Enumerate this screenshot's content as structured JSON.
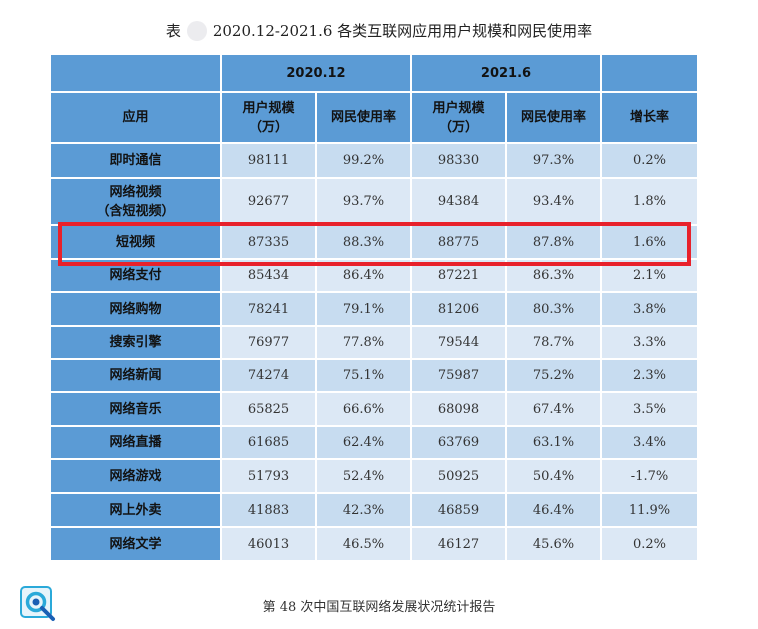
{
  "caption": {
    "prefix": "表",
    "text": "2020.12-2021.6 各类互联网应用用户规模和网民使用率"
  },
  "table": {
    "period_headers": [
      "2020.12",
      "2021.6"
    ],
    "col_headers": {
      "app": "应用",
      "users_a": "用户规模",
      "users_b": "（万）",
      "rate": "网民使用率",
      "growth": "增长率"
    },
    "rows": [
      {
        "app": "即时通信",
        "u2020": "98111",
        "r2020": "99.2%",
        "u2021": "98330",
        "r2021": "97.3%",
        "growth": "0.2%"
      },
      {
        "app": "网络视频",
        "app2": "（含短视频）",
        "u2020": "92677",
        "r2020": "93.7%",
        "u2021": "94384",
        "r2021": "93.4%",
        "growth": "1.8%"
      },
      {
        "app": "短视频",
        "u2020": "87335",
        "r2020": "88.3%",
        "u2021": "88775",
        "r2021": "87.8%",
        "growth": "1.6%"
      },
      {
        "app": "网络支付",
        "u2020": "85434",
        "r2020": "86.4%",
        "u2021": "87221",
        "r2021": "86.3%",
        "growth": "2.1%"
      },
      {
        "app": "网络购物",
        "u2020": "78241",
        "r2020": "79.1%",
        "u2021": "81206",
        "r2021": "80.3%",
        "growth": "3.8%"
      },
      {
        "app": "搜索引擎",
        "u2020": "76977",
        "r2020": "77.8%",
        "u2021": "79544",
        "r2021": "78.7%",
        "growth": "3.3%"
      },
      {
        "app": "网络新闻",
        "u2020": "74274",
        "r2020": "75.1%",
        "u2021": "75987",
        "r2021": "75.2%",
        "growth": "2.3%"
      },
      {
        "app": "网络音乐",
        "u2020": "65825",
        "r2020": "66.6%",
        "u2021": "68098",
        "r2021": "67.4%",
        "growth": "3.5%"
      },
      {
        "app": "网络直播",
        "u2020": "61685",
        "r2020": "62.4%",
        "u2021": "63769",
        "r2021": "63.1%",
        "growth": "3.4%"
      },
      {
        "app": "网络游戏",
        "u2020": "51793",
        "r2020": "52.4%",
        "u2021": "50925",
        "r2021": "50.4%",
        "growth": "-1.7%"
      },
      {
        "app": "网上外卖",
        "u2020": "41883",
        "r2020": "42.3%",
        "u2021": "46859",
        "r2021": "46.4%",
        "growth": "11.9%"
      },
      {
        "app": "网络文学",
        "u2020": "46013",
        "r2020": "46.5%",
        "u2021": "46127",
        "r2021": "45.6%",
        "growth": "0.2%"
      }
    ]
  },
  "footer": {
    "text": "第 48 次中国互联网络发展状况统计报告"
  },
  "logo": {
    "icon": "magnifier-logo-icon",
    "colors": [
      "#2aa9d9",
      "#1a5fb4"
    ]
  }
}
